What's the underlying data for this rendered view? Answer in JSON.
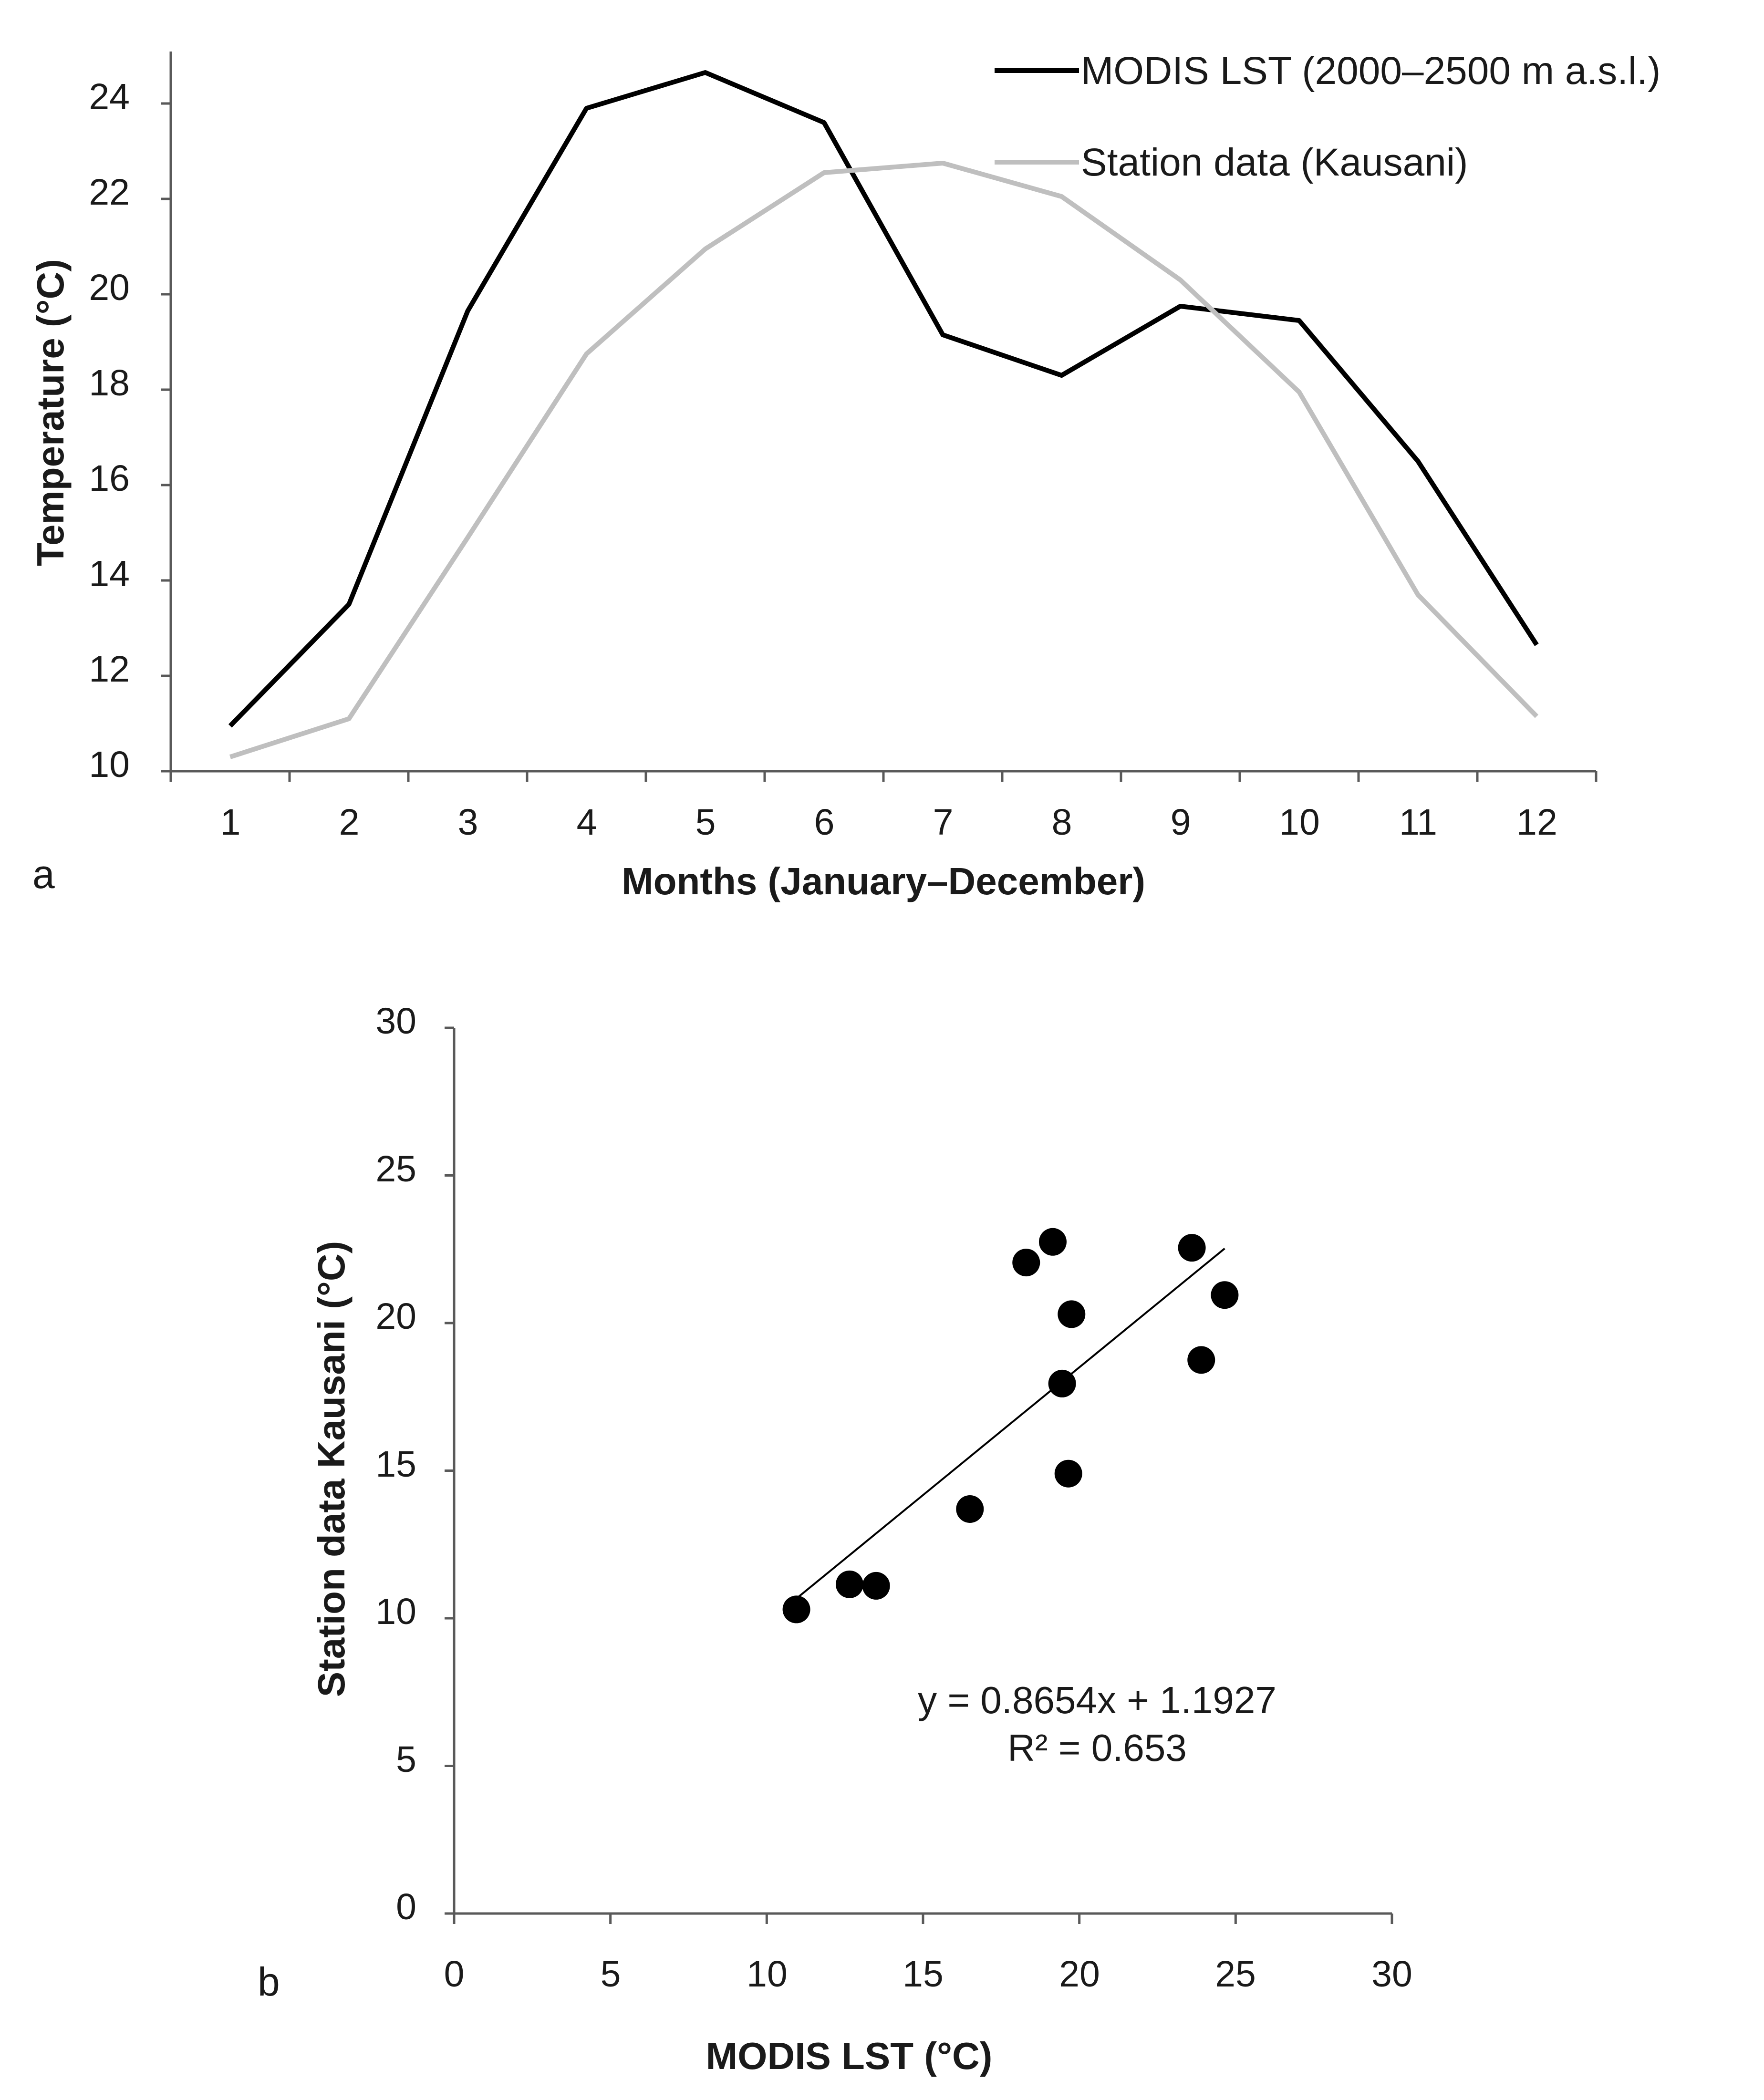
{
  "chart_data": [
    {
      "type": "line",
      "panel_label": "a",
      "xlabel": "Months (January–December)",
      "ylabel": "Temperature (°C)",
      "ylim": [
        10,
        25
      ],
      "yticks": [
        10,
        12,
        14,
        16,
        18,
        20,
        22,
        24
      ],
      "categories": [
        "1",
        "2",
        "3",
        "4",
        "5",
        "6",
        "7",
        "8",
        "9",
        "10",
        "11",
        "12"
      ],
      "legend_position": "top-right",
      "series": [
        {
          "name": "MODIS LST (2000–2500 m a.s.l.)",
          "color": "#000000",
          "values": [
            10.95,
            13.5,
            19.65,
            23.9,
            24.65,
            23.6,
            19.15,
            18.3,
            19.75,
            19.45,
            16.5,
            12.65
          ]
        },
        {
          "name": "Station data (Kausani)",
          "color": "#bfbfbf",
          "values": [
            10.3,
            11.1,
            14.9,
            18.75,
            20.95,
            22.55,
            22.75,
            22.05,
            20.3,
            17.95,
            13.7,
            11.15
          ]
        }
      ]
    },
    {
      "type": "scatter",
      "panel_label": "b",
      "xlabel": "MODIS LST (°C)",
      "ylabel": "Station data Kausani (°C)",
      "xlim": [
        0,
        30
      ],
      "ylim": [
        0,
        30
      ],
      "xticks": [
        0,
        5,
        10,
        15,
        20,
        25,
        30
      ],
      "yticks": [
        0,
        5,
        10,
        15,
        20,
        25,
        30
      ],
      "color": "#000000",
      "points": [
        {
          "x": 10.95,
          "y": 10.3
        },
        {
          "x": 13.5,
          "y": 11.1
        },
        {
          "x": 19.65,
          "y": 14.9
        },
        {
          "x": 23.9,
          "y": 18.75
        },
        {
          "x": 24.65,
          "y": 20.95
        },
        {
          "x": 23.6,
          "y": 22.55
        },
        {
          "x": 19.15,
          "y": 22.75
        },
        {
          "x": 18.3,
          "y": 22.05
        },
        {
          "x": 19.75,
          "y": 20.3
        },
        {
          "x": 19.45,
          "y": 17.95
        },
        {
          "x": 16.5,
          "y": 13.7
        },
        {
          "x": 12.65,
          "y": 11.15
        }
      ],
      "trendline": {
        "slope": 0.8654,
        "intercept": 1.1927,
        "x_range": [
          10.95,
          24.65
        ],
        "equation": "y = 0.8654x + 1.1927",
        "r_squared": "R² = 0.653"
      }
    }
  ]
}
